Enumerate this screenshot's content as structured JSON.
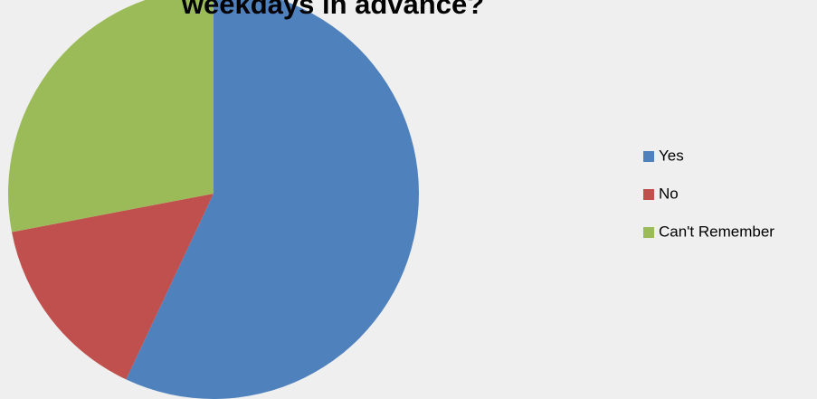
{
  "chart_data": {
    "type": "pie",
    "title": "weekdays in advance?",
    "categories": [
      "Yes",
      "No",
      "Can't Remember"
    ],
    "values": [
      57,
      15,
      28
    ],
    "colors": [
      "#4f81bd",
      "#c0504d",
      "#9bbb59"
    ]
  }
}
